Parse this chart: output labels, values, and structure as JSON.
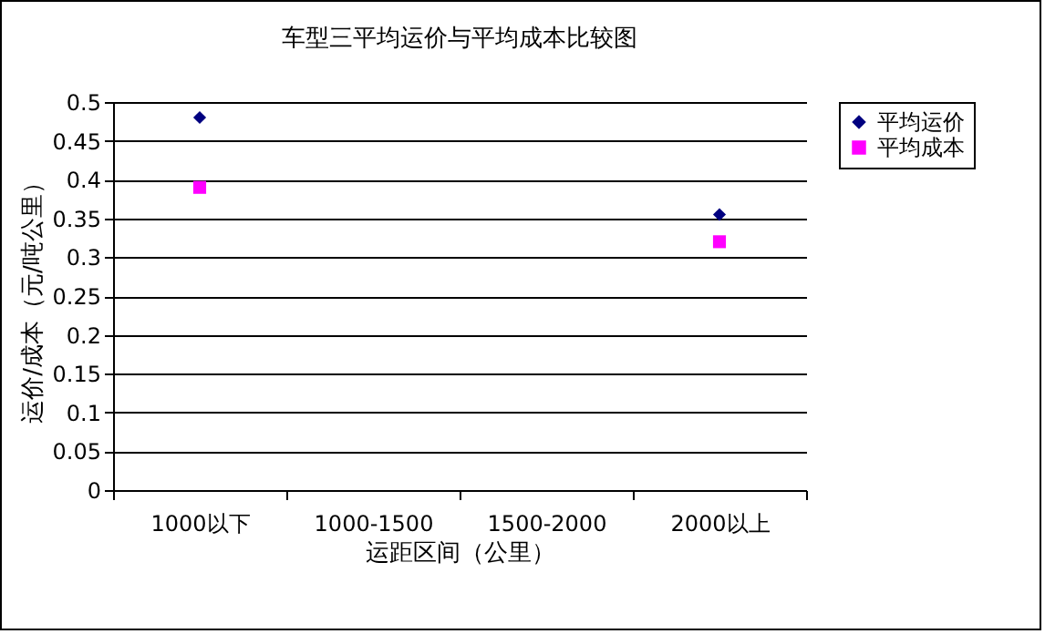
{
  "chart_data": {
    "type": "scatter",
    "title": "车型三平均运价与平均成本比较图",
    "xlabel": "运距区间（公里）",
    "ylabel": "运价/成本（元/吨公里）",
    "categories": [
      "1000以下",
      "1000-1500",
      "1500-2000",
      "2000以上"
    ],
    "series": [
      {
        "name": "平均运价",
        "color": "#000080",
        "marker": "diamond",
        "values": [
          0.48,
          null,
          null,
          0.355
        ]
      },
      {
        "name": "平均成本",
        "color": "#ff00ff",
        "marker": "square",
        "values": [
          0.39,
          null,
          null,
          0.32
        ]
      }
    ],
    "ylim": [
      0,
      0.5
    ],
    "yticks": [
      0,
      0.05,
      0.1,
      0.15,
      0.2,
      0.25,
      0.3,
      0.35,
      0.4,
      0.45,
      0.5
    ],
    "grid": "y",
    "legend": "right"
  }
}
